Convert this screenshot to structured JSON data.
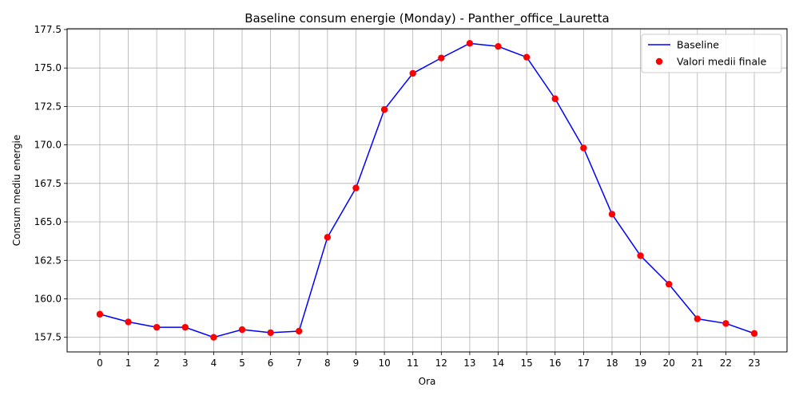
{
  "chart_data": {
    "type": "line",
    "title": "Baseline consum energie (Monday) - Panther_office_Lauretta",
    "xlabel": "Ora",
    "ylabel": "Consum mediu energie",
    "x": [
      0,
      1,
      2,
      3,
      4,
      5,
      6,
      7,
      8,
      9,
      10,
      11,
      12,
      13,
      14,
      15,
      16,
      17,
      18,
      19,
      20,
      21,
      22,
      23
    ],
    "x_tick_labels": [
      "0",
      "1",
      "2",
      "3",
      "4",
      "5",
      "6",
      "7",
      "8",
      "9",
      "10",
      "11",
      "12",
      "13",
      "14",
      "15",
      "16",
      "17",
      "18",
      "19",
      "20",
      "21",
      "22",
      "23"
    ],
    "y_tick_labels": [
      "157.5",
      "160.0",
      "162.5",
      "165.0",
      "167.5",
      "170.0",
      "172.5",
      "175.0",
      "177.5"
    ],
    "y_ticks": [
      157.5,
      160.0,
      162.5,
      165.0,
      167.5,
      170.0,
      172.5,
      175.0,
      177.5
    ],
    "xlim": [
      -1.15,
      24.15
    ],
    "ylim": [
      156.55,
      177.55
    ],
    "grid": true,
    "legend_position": "upper right",
    "series": [
      {
        "name": "Baseline",
        "kind": "line",
        "color": "#0000ff",
        "values": [
          159.0,
          158.5,
          158.15,
          158.15,
          157.5,
          158.0,
          157.8,
          157.9,
          164.0,
          167.2,
          172.3,
          174.65,
          175.65,
          176.6,
          176.4,
          175.7,
          173.0,
          169.8,
          165.5,
          162.8,
          160.95,
          158.7,
          158.4,
          157.75
        ]
      },
      {
        "name": "Valori medii finale",
        "kind": "scatter",
        "color": "#ff0000",
        "values": [
          159.0,
          158.5,
          158.15,
          158.15,
          157.5,
          158.0,
          157.8,
          157.9,
          164.0,
          167.2,
          172.3,
          174.65,
          175.65,
          176.6,
          176.4,
          175.7,
          173.0,
          169.8,
          165.5,
          162.8,
          160.95,
          158.7,
          158.4,
          157.75
        ]
      }
    ]
  }
}
